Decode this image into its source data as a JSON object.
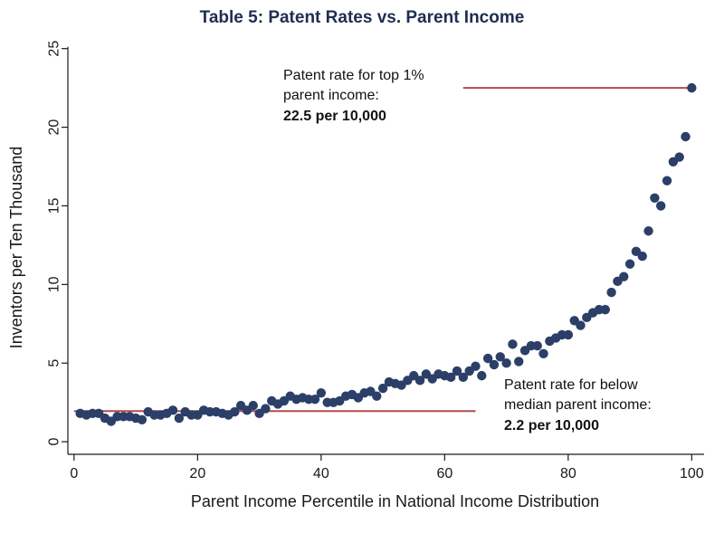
{
  "chart_data": {
    "type": "scatter",
    "title": "Table 5: Patent Rates vs. Parent Income",
    "xlabel": "Parent Income Percentile in National Income Distribution",
    "ylabel": "Inventors per Ten Thousand",
    "xlim": [
      -1,
      102
    ],
    "ylim": [
      -0.8,
      25.5
    ],
    "xticks": [
      0,
      20,
      40,
      60,
      80,
      100
    ],
    "yticks": [
      0,
      5,
      10,
      15,
      20,
      25
    ],
    "grid": false,
    "series": [
      {
        "x": [
          1,
          2,
          3,
          4,
          5,
          6,
          7,
          8,
          9,
          10,
          11,
          12,
          13,
          14,
          15,
          16,
          17,
          18,
          19,
          20,
          21,
          22,
          23,
          24,
          25,
          26,
          27,
          28,
          29,
          30,
          31,
          32,
          33,
          34,
          35,
          36,
          37,
          38,
          39,
          40,
          41,
          42,
          43,
          44,
          45,
          46,
          47,
          48,
          49,
          50,
          51,
          52,
          53,
          54,
          55,
          56,
          57,
          58,
          59,
          60,
          61,
          62,
          63,
          64,
          65,
          66,
          67,
          68,
          69,
          70,
          71,
          72,
          73,
          74,
          75,
          76,
          77,
          78,
          79,
          80,
          81,
          82,
          83,
          84,
          85,
          86,
          87,
          88,
          89,
          90,
          91,
          92,
          93,
          94,
          95,
          96,
          97,
          98,
          99,
          100
        ],
        "y": [
          1.8,
          1.7,
          1.8,
          1.8,
          1.5,
          1.3,
          1.6,
          1.6,
          1.6,
          1.5,
          1.4,
          1.9,
          1.7,
          1.7,
          1.8,
          2.0,
          1.5,
          1.9,
          1.7,
          1.7,
          2.0,
          1.9,
          1.9,
          1.8,
          1.7,
          1.9,
          2.3,
          2.0,
          2.3,
          1.8,
          2.1,
          2.6,
          2.4,
          2.6,
          2.9,
          2.7,
          2.8,
          2.7,
          2.7,
          3.1,
          2.5,
          2.5,
          2.6,
          2.9,
          3.0,
          2.8,
          3.1,
          3.2,
          2.9,
          3.4,
          3.8,
          3.7,
          3.6,
          3.9,
          4.2,
          3.9,
          4.3,
          4.0,
          4.3,
          4.2,
          4.1,
          4.5,
          4.1,
          4.5,
          4.8,
          4.2,
          5.3,
          4.9,
          5.4,
          5.0,
          6.2,
          5.1,
          5.8,
          6.1,
          6.1,
          5.6,
          6.4,
          6.6,
          6.8,
          6.8,
          7.7,
          7.4,
          7.9,
          8.2,
          8.4,
          8.4,
          9.5,
          10.2,
          10.5,
          11.3,
          12.1,
          11.8,
          13.4,
          15.5,
          15.0,
          16.6,
          17.8,
          18.1,
          19.4,
          22.5
        ]
      }
    ],
    "reference_lines": [
      {
        "y": 22.5,
        "x_from": 63,
        "x_to": 100,
        "color": "#b24a4a"
      },
      {
        "y": 1.95,
        "x_from": 0,
        "x_to": 65,
        "color": "#b24a4a"
      }
    ],
    "annotations": [
      {
        "lines": [
          "Patent rate for top 1%",
          "parent income:"
        ],
        "value": "22.5 per 10,000"
      },
      {
        "lines": [
          "Patent rate for below",
          "median parent income:"
        ],
        "value": "2.2 per 10,000"
      }
    ],
    "marker_color": "#2b3f68"
  }
}
